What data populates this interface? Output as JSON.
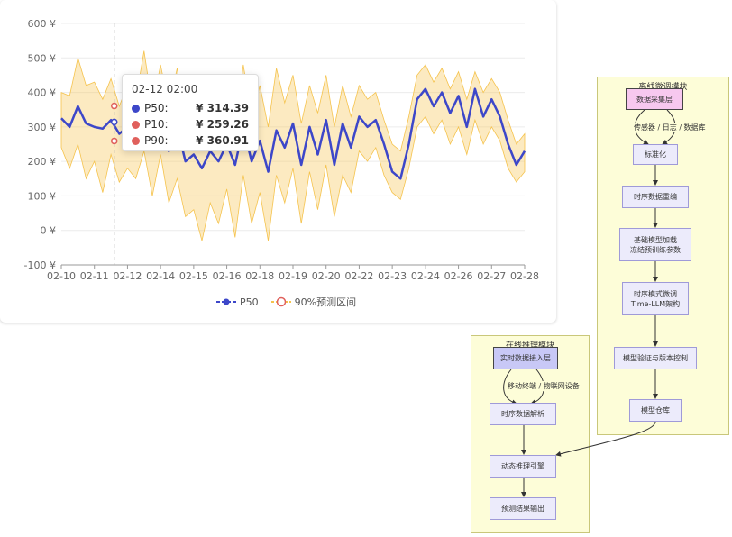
{
  "chart_data": {
    "type": "line",
    "currency": "¥",
    "ylim": [
      -100,
      600
    ],
    "y_ticks": [
      "600 ¥",
      "500 ¥",
      "400 ¥",
      "300 ¥",
      "200 ¥",
      "100 ¥",
      "0 ¥",
      "-100 ¥"
    ],
    "y_tick_values": [
      600,
      500,
      400,
      300,
      200,
      100,
      0,
      -100
    ],
    "x_ticks": [
      "02-10",
      "02-11",
      "02-12",
      "02-14",
      "02-15",
      "02-16",
      "02-18",
      "02-19",
      "02-20",
      "02-22",
      "02-23",
      "02-24",
      "02-26",
      "02-27",
      "02-28"
    ],
    "x_tick_values": [
      0,
      1,
      2,
      3,
      4,
      5,
      6,
      7,
      8,
      9,
      10,
      11,
      12,
      13,
      14
    ],
    "series": [
      {
        "name": "P50",
        "color": "#3d47c9",
        "x": [
          0,
          0.25,
          0.5,
          0.75,
          1,
          1.25,
          1.5,
          1.75,
          2,
          2.25,
          2.5,
          2.75,
          3,
          3.25,
          3.5,
          3.75,
          4,
          4.25,
          4.5,
          4.75,
          5,
          5.25,
          5.5,
          5.75,
          6,
          6.25,
          6.5,
          6.75,
          7,
          7.25,
          7.5,
          7.75,
          8,
          8.25,
          8.5,
          8.75,
          9,
          9.25,
          9.5,
          9.75,
          10,
          10.25,
          10.5,
          10.75,
          11,
          11.25,
          11.5,
          11.75,
          12,
          12.25,
          12.5,
          12.75,
          13,
          13.25,
          13.5,
          13.75,
          14
        ],
        "values": [
          325,
          300,
          360,
          310,
          300,
          295,
          320,
          280,
          300,
          285,
          320,
          250,
          330,
          230,
          300,
          200,
          220,
          180,
          230,
          200,
          250,
          190,
          300,
          200,
          260,
          170,
          290,
          240,
          310,
          190,
          300,
          220,
          320,
          190,
          310,
          240,
          330,
          300,
          320,
          250,
          170,
          150,
          250,
          380,
          410,
          360,
          400,
          340,
          390,
          300,
          410,
          330,
          380,
          330,
          250,
          190,
          230
        ]
      },
      {
        "name": "90%预测区间",
        "color": "#f5c34d",
        "band": true,
        "x": [
          0,
          0.25,
          0.5,
          0.75,
          1,
          1.25,
          1.5,
          1.75,
          2,
          2.25,
          2.5,
          2.75,
          3,
          3.25,
          3.5,
          3.75,
          4,
          4.25,
          4.5,
          4.75,
          5,
          5.25,
          5.5,
          5.75,
          6,
          6.25,
          6.5,
          6.75,
          7,
          7.25,
          7.5,
          7.75,
          8,
          8.25,
          8.5,
          8.75,
          9,
          9.25,
          9.5,
          9.75,
          10,
          10.25,
          10.5,
          10.75,
          11,
          11.25,
          11.5,
          11.75,
          12,
          12.25,
          12.5,
          12.75,
          13,
          13.25,
          13.5,
          13.75,
          14
        ],
        "lower": [
          240,
          180,
          250,
          150,
          200,
          110,
          220,
          140,
          180,
          150,
          230,
          100,
          220,
          80,
          150,
          40,
          60,
          -30,
          80,
          20,
          120,
          -20,
          160,
          20,
          110,
          -30,
          160,
          80,
          180,
          20,
          170,
          60,
          190,
          40,
          160,
          110,
          230,
          200,
          240,
          160,
          110,
          90,
          180,
          300,
          330,
          280,
          320,
          250,
          300,
          220,
          320,
          250,
          300,
          260,
          180,
          140,
          170
        ],
        "upper": [
          400,
          390,
          500,
          420,
          430,
          380,
          440,
          360,
          420,
          380,
          520,
          360,
          480,
          360,
          470,
          330,
          380,
          310,
          420,
          330,
          430,
          310,
          480,
          330,
          420,
          300,
          470,
          370,
          450,
          310,
          420,
          340,
          450,
          300,
          420,
          330,
          420,
          380,
          400,
          320,
          250,
          230,
          330,
          450,
          480,
          430,
          470,
          410,
          460,
          380,
          460,
          400,
          440,
          400,
          320,
          250,
          280
        ]
      }
    ],
    "tooltip": {
      "title": "02-12 02:00",
      "rows": [
        {
          "label": "P50:",
          "value": "¥ 314.39",
          "color": "#3d47c9"
        },
        {
          "label": "P10:",
          "value": "¥ 259.26",
          "color": "#e0605c"
        },
        {
          "label": "P90:",
          "value": "¥ 360.91",
          "color": "#e0605c"
        }
      ]
    },
    "legend": [
      "P50",
      "90%预测区间"
    ]
  },
  "flowchart": {
    "offline_module": {
      "title": "离线微调模块",
      "nodes": {
        "collect": "数据采集层",
        "normalize": "标准化",
        "reshape": "时序数据重编",
        "load": [
          "基础模型加载",
          "冻结预训练参数"
        ],
        "finetune": [
          "时序模式微调",
          "Time-LLM架构"
        ],
        "validate": "模型验证与版本控制",
        "repo": "模型仓库"
      },
      "edge_label": "传感器 / 日志 / 数据库"
    },
    "online_module": {
      "title": "在线推理模块",
      "nodes": {
        "ingest": "实时数据接入层",
        "parse": "时序数据解析",
        "engine": "动态推理引擎",
        "output": "预测结果输出"
      },
      "edge_label": "移动终端 / 物联网设备"
    }
  }
}
